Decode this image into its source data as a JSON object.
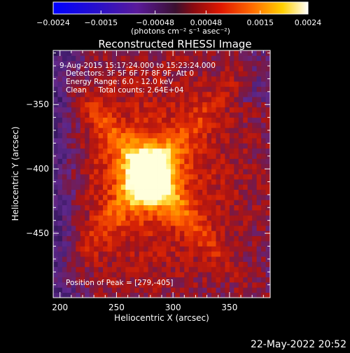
{
  "colorbar": {
    "tick_labels": [
      "−0.0024",
      "−0.0015",
      "−0.00048",
      "0.00048",
      "0.0015",
      "0.0024"
    ],
    "tick_values": [
      -0.0024,
      -0.0015,
      -0.00048,
      0.00048,
      0.0015,
      0.0024
    ],
    "units_label": "(photons cm⁻² s⁻¹ asec⁻²)",
    "range": [
      -0.0024,
      0.0024
    ],
    "colormap": "blue-purple-red-orange-yellow-white"
  },
  "title": "Reconstructed RHESSI Image",
  "annotations": {
    "time_range": "9-Aug-2015 15:17:24.000 to 15:23:24.000",
    "detectors": "Detectors: 3F 5F 6F 7F 8F 9F, Att 0",
    "energy_range": "Energy Range: 6.0 - 12.0 keV",
    "clean_counts": "Clean     Total counts: 2.64E+04",
    "peak_position": "Position of Peak = [279,-405]"
  },
  "timestamp": "22-May-2022 20:52",
  "chart_data": {
    "type": "heatmap",
    "title": "Reconstructed RHESSI Image",
    "xlabel": "Heliocentric X (arcsec)",
    "ylabel": "Heliocentric Y (arcsec)",
    "xlim": [
      194,
      386
    ],
    "ylim": [
      -500,
      -308
    ],
    "x_ticks": [
      200,
      250,
      300,
      350
    ],
    "x_tick_labels": [
      "200",
      "250",
      "300",
      "350"
    ],
    "y_ticks": [
      -350,
      -400,
      -450
    ],
    "y_tick_labels": [
      "−350",
      "−400",
      "−450"
    ],
    "grid": false,
    "peak": {
      "x": 279,
      "y": -405
    },
    "colors": {
      "low": "#4a1a7a",
      "mid": "#c81e00",
      "high": "#ff8a00",
      "peak": "#ffffc0"
    }
  }
}
